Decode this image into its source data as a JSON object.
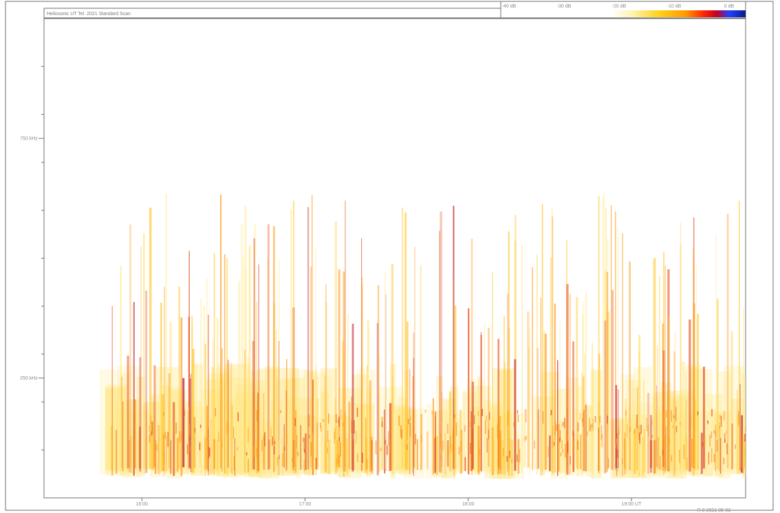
{
  "chart_data": {
    "type": "heatmap",
    "title": "Heliosonic UT Tel. 2021 Standard Scan",
    "yticks": [
      {
        "label": "750 kHz",
        "value": 750
      },
      {
        "label": "250 kHz",
        "value": 250
      }
    ],
    "xticks": [
      {
        "label": "16:00",
        "value": 16
      },
      {
        "label": "17:00",
        "value": 17
      },
      {
        "label": "18:00",
        "value": 18
      },
      {
        "label": "19:00 UT",
        "value": 19
      }
    ],
    "xlim": [
      15.4,
      19.7
    ],
    "ylim": [
      0,
      1000
    ],
    "colorbar": {
      "ticks": [
        "-40 dB",
        "-30 dB",
        "-20 dB",
        "-10 dB",
        "0 dB"
      ],
      "stops": [
        "#ffffff",
        "#fff3b0",
        "#ffd21a",
        "#ff9a00",
        "#ff2a00",
        "#c80020",
        "#2040ff",
        "#0a1a8a"
      ]
    },
    "colors": [
      "#fff8d0",
      "#ffe680",
      "#ffc833",
      "#ff9a1a",
      "#e8501a",
      "#c01e2a"
    ],
    "footnote": "R 0 2021 08-03",
    "grid": false,
    "legend_position": "top-right"
  }
}
